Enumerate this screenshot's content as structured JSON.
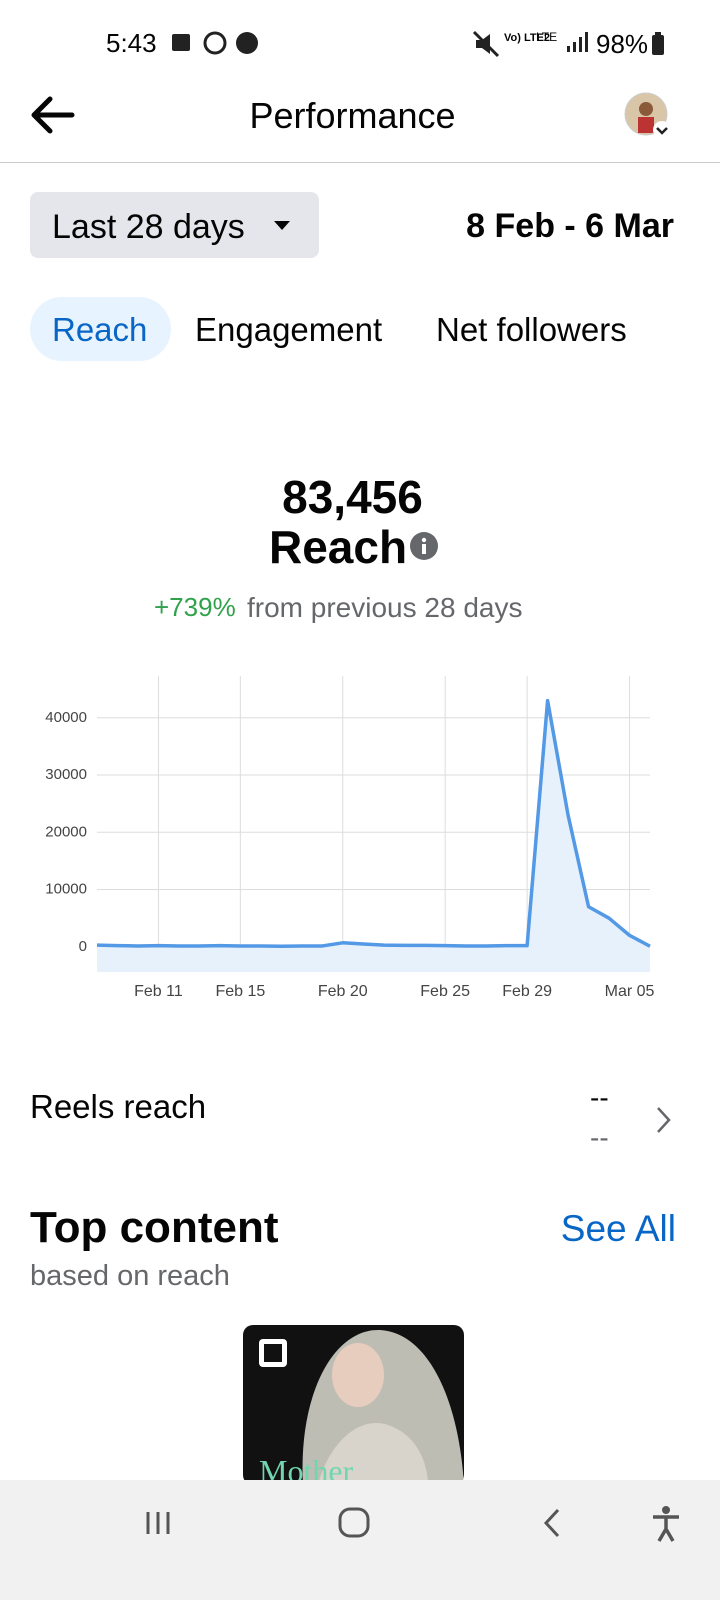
{
  "status_bar": {
    "time": "5:43",
    "volte": "Vo) LTE2",
    "network": "LTE",
    "battery": "98%"
  },
  "header": {
    "title": "Performance"
  },
  "filter": {
    "range": "Last 28 days",
    "dates": "8 Feb - 6 Mar"
  },
  "tabs": [
    "Reach",
    "Engagement",
    "Net followers"
  ],
  "summary": {
    "total": "83,456",
    "metric": "Reach",
    "change": "+739%",
    "change_note": "from previous 28 days"
  },
  "chart_data": {
    "type": "line",
    "area": true,
    "color": "#5399e5",
    "fill": "#e6f1fc",
    "grid": true,
    "categories": [
      null,
      null,
      null,
      "Feb 11",
      null,
      null,
      null,
      "Feb 15",
      null,
      null,
      null,
      null,
      "Feb 20",
      null,
      null,
      null,
      null,
      "Feb 25",
      null,
      null,
      null,
      "Feb 29",
      null,
      null,
      null,
      null,
      "Mar 05",
      null
    ],
    "values": [
      300,
      200,
      150,
      200,
      150,
      150,
      200,
      150,
      150,
      100,
      150,
      150,
      700,
      500,
      300,
      250,
      250,
      200,
      150,
      150,
      200,
      200,
      43000,
      23000,
      7000,
      5000,
      2000,
      100
    ],
    "ylim": [
      -4400,
      47300
    ],
    "yticks": [
      0,
      10000,
      20000,
      30000,
      40000
    ]
  },
  "reels": {
    "label": "Reels reach",
    "values": [
      "--",
      "--"
    ]
  },
  "top_content": {
    "title": "Top content",
    "subtitle": "based on reach",
    "link": "See All",
    "thumbnail_text": "Mother"
  }
}
